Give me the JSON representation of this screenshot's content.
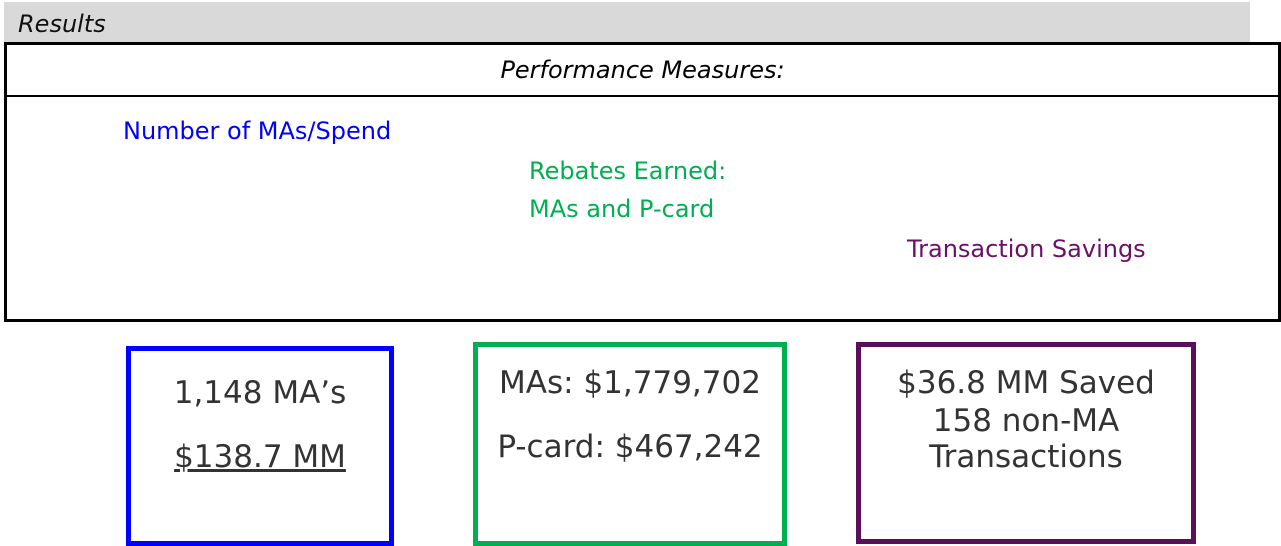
{
  "header": {
    "title": "Results"
  },
  "table": {
    "heading": "Performance Measures:",
    "measures": [
      "Number of MAs/Spend",
      "Rebates Earned:",
      "MAs and P-card",
      "Transaction Savings"
    ]
  },
  "boxes": [
    {
      "lines": [
        "1,148 MA’s",
        "$138.7 MM"
      ]
    },
    {
      "lines": [
        "MAs: $1,779,702",
        "P-card: $467,242"
      ]
    },
    {
      "lines": [
        "$36.8 MM Saved",
        "158 non-MA",
        "Transactions"
      ]
    }
  ]
}
